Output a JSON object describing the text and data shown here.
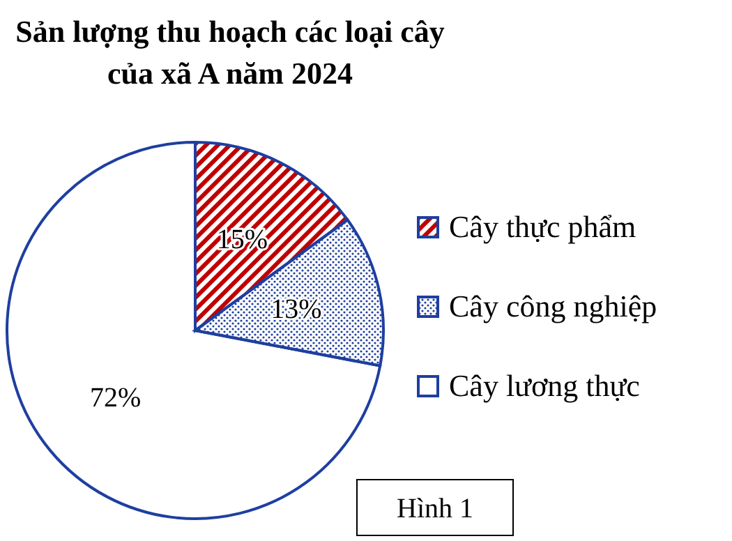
{
  "chart_data": {
    "type": "pie",
    "title": "Sản lượng thu hoạch các loại cây\ncủa xã A năm 2024",
    "categories": [
      "Cây thực phẩm",
      "Cây công nghiệp",
      "Cây lương thực"
    ],
    "values": [
      15,
      13,
      72
    ],
    "colors": [
      "#c00000",
      "#1f3f9f",
      "#ffffff"
    ],
    "value_labels": [
      "15%",
      "13%",
      "72%"
    ],
    "legend": "right",
    "annotations": [
      "Hình 1"
    ]
  }
}
